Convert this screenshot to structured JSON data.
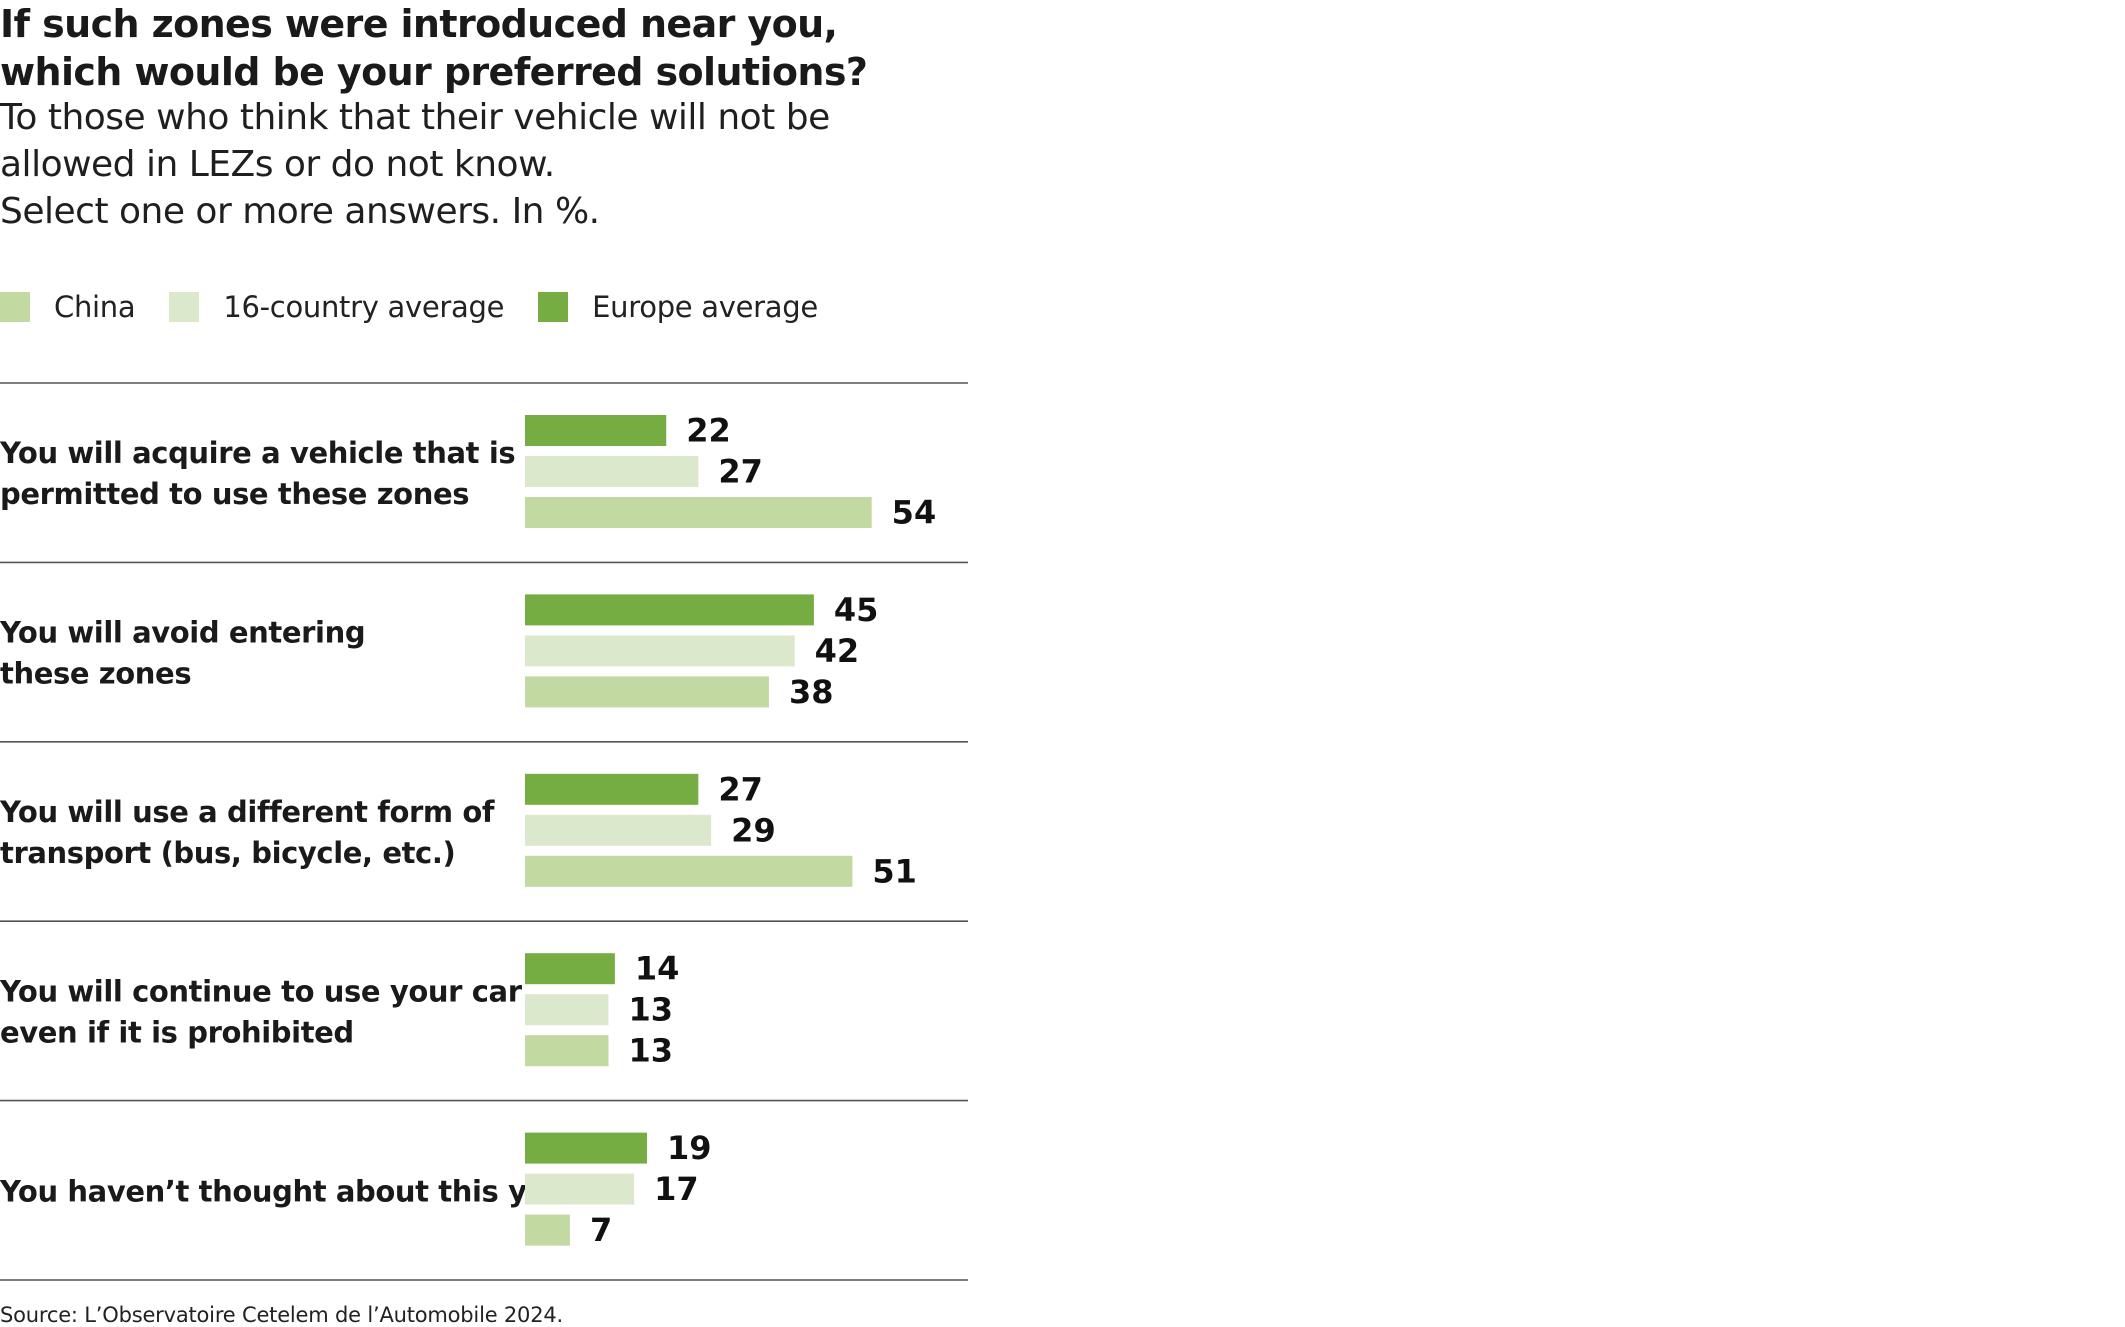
{
  "title": "If such zones were introduced near you,\nwhich would be your preferred solutions?",
  "subtitle": "To those who think that their vehicle will not be\nallowed in LEZs or do not know.\nSelect one or more answers. In %.",
  "source": "Source: L’Observatoire Cetelem de l’Automobile 2024.",
  "colors": {
    "europe": "#76ad42",
    "average": "#dce8cc",
    "china": "#c3d9a2",
    "rule": "#555555",
    "value_text": "#111111"
  },
  "legend": [
    {
      "label": "China",
      "color": "#c3d9a2"
    },
    {
      "label": "16-country average",
      "color": "#dce8cc"
    },
    {
      "label": "Europe average",
      "color": "#76ad42"
    }
  ],
  "chart_data": {
    "type": "bar",
    "orientation": "horizontal",
    "title": "If such zones were introduced near you, which would be your preferred solutions?",
    "unit": "%",
    "categories": [
      "You will acquire a vehicle that is\npermitted to use these zones",
      "You will avoid entering\nthese zones",
      "You will use a different form of\ntransport (bus, bicycle, etc.)",
      "You will continue to use your car\neven if it is prohibited",
      "You haven’t thought about this yet"
    ],
    "series": [
      {
        "name": "Europe average",
        "color": "#76ad42",
        "values": [
          22,
          45,
          27,
          14,
          19
        ]
      },
      {
        "name": "16-country average",
        "color": "#dce8cc",
        "values": [
          27,
          42,
          29,
          13,
          17
        ]
      },
      {
        "name": "China",
        "color": "#c3d9a2",
        "values": [
          54,
          38,
          51,
          13,
          7
        ]
      }
    ],
    "xlim": [
      0,
      100
    ],
    "grid": false,
    "legend_position": "top-left"
  }
}
